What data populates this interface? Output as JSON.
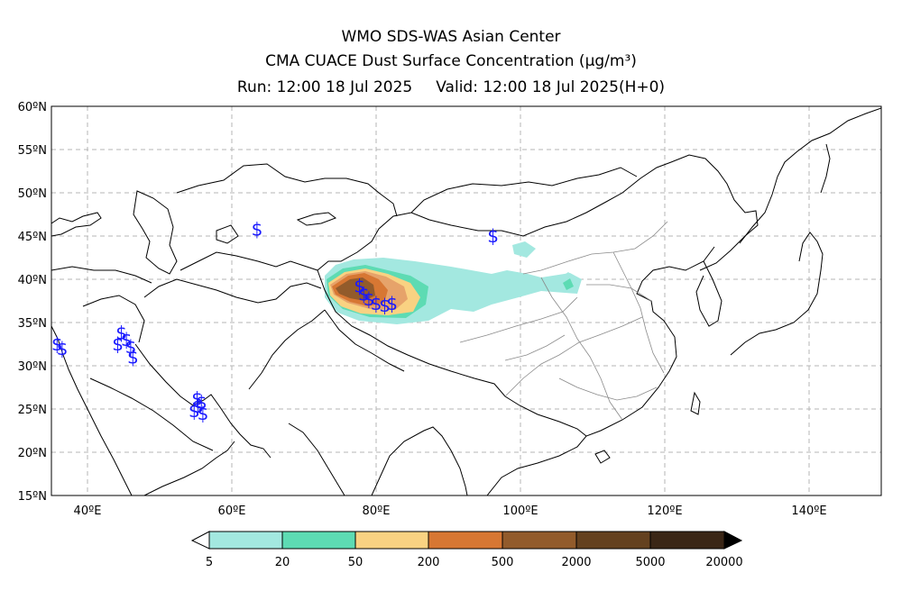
{
  "header": {
    "line1": "WMO SDS-WAS Asian Center",
    "line2": "CMA CUACE Dust Surface Concentration (μg/m³)",
    "run": "Run: 12:00 18 Jul 2025",
    "valid": "Valid: 12:00 18 Jul 2025(H+0)"
  },
  "map": {
    "lon_range": [
      35,
      150
    ],
    "lat_range": [
      15,
      60
    ],
    "lat_ticks": [
      "60ºN",
      "55ºN",
      "50ºN",
      "45ºN",
      "40ºN",
      "35ºN",
      "30ºN",
      "25ºN",
      "20ºN",
      "15ºN"
    ],
    "lon_ticks": [
      "40ºE",
      "60ºE",
      "80ºE",
      "100ºE",
      "120ºE",
      "140ºE"
    ],
    "grid": true,
    "station_symbol": "$",
    "station_color": "#1a1aff",
    "dust_stations": [
      {
        "lon": 63.5,
        "lat": 45.8
      },
      {
        "lon": 96.2,
        "lat": 45.0
      },
      {
        "lon": 77.7,
        "lat": 39.2
      },
      {
        "lon": 78.3,
        "lat": 38.3
      },
      {
        "lon": 79.0,
        "lat": 37.7
      },
      {
        "lon": 80.0,
        "lat": 37.2
      },
      {
        "lon": 81.2,
        "lat": 37.0
      },
      {
        "lon": 82.2,
        "lat": 37.2
      },
      {
        "lon": 35.8,
        "lat": 32.5
      },
      {
        "lon": 36.5,
        "lat": 32.0
      },
      {
        "lon": 44.7,
        "lat": 33.8
      },
      {
        "lon": 45.4,
        "lat": 33.0
      },
      {
        "lon": 46.0,
        "lat": 32.2
      },
      {
        "lon": 44.2,
        "lat": 32.5
      },
      {
        "lon": 46.3,
        "lat": 31.0
      },
      {
        "lon": 55.3,
        "lat": 25.3
      },
      {
        "lon": 54.8,
        "lat": 24.8
      },
      {
        "lon": 55.8,
        "lat": 25.8
      },
      {
        "lon": 56.0,
        "lat": 24.5
      },
      {
        "lon": 55.2,
        "lat": 26.2
      }
    ]
  },
  "colorbar": {
    "ticks": [
      "5",
      "20",
      "50",
      "200",
      "500",
      "2000",
      "5000",
      "20000"
    ],
    "colors": [
      "#a3e8e0",
      "#5ddbb3",
      "#f9d282",
      "#e6a36a",
      "#d77733",
      "#925b2b",
      "#64411f",
      "#3a2616"
    ]
  }
}
